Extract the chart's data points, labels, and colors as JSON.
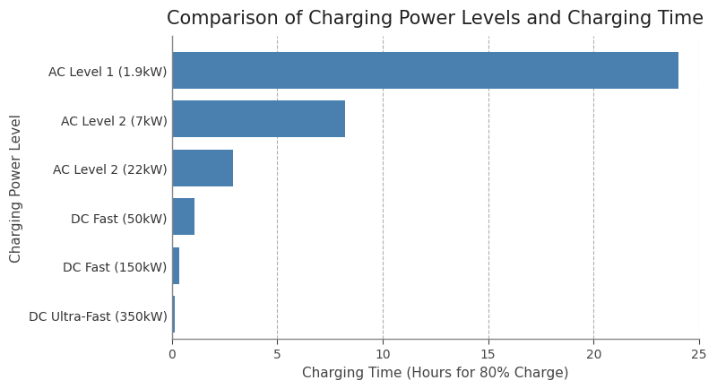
{
  "title": "Comparison of Charging Power Levels and Charging Time",
  "xlabel": "Charging Time (Hours for 80% Charge)",
  "ylabel": "Charging Power Level",
  "categories": [
    "DC Ultra-Fast (350kW)",
    "DC Fast (150kW)",
    "DC Fast (50kW)",
    "AC Level 2 (22kW)",
    "AC Level 2 (7kW)",
    "AC Level 1 (1.9kW)"
  ],
  "values": [
    0.13,
    0.37,
    1.1,
    2.9,
    8.2,
    24.0
  ],
  "bar_color": "#4a80b0",
  "xlim": [
    0,
    25
  ],
  "xticks": [
    0,
    5,
    10,
    15,
    20,
    25
  ],
  "background_color": "#ffffff",
  "grid_color": "#b0b0b0",
  "title_fontsize": 15,
  "label_fontsize": 11,
  "tick_fontsize": 10,
  "bar_height": 0.75
}
